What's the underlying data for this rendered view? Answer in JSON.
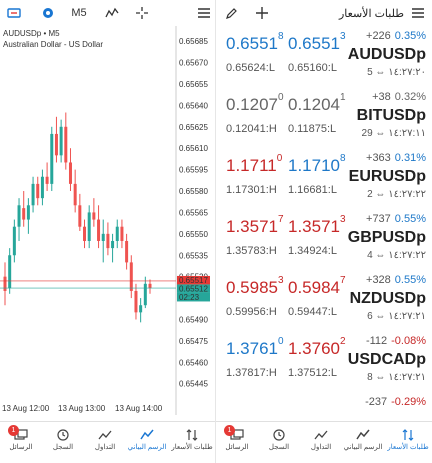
{
  "left_toolbar": {
    "timeframe": "M5"
  },
  "chart_data": {
    "type": "candlestick",
    "title": "AUDUSDp • M5",
    "subtitle": "Australian Dollar - US Dollar",
    "ylim": [
      0.65435,
      0.6569
    ],
    "y_ticks": [
      "0.65685",
      "0.65670",
      "0.65655",
      "0.65640",
      "0.65625",
      "0.65610",
      "0.65595",
      "0.65580",
      "0.65565",
      "0.65550",
      "0.65535",
      "0.65520",
      "0.65490",
      "0.65475",
      "0.65460",
      "0.65445"
    ],
    "x_ticks": [
      "13 Aug 12:00",
      "13 Aug 13:00",
      "13 Aug 14:00"
    ],
    "price_tags": [
      {
        "value": "0.65517",
        "color": "#e53935"
      },
      {
        "value": "0.65512",
        "color": "#26a69a"
      },
      {
        "value": "02:23",
        "color": "#26a69a"
      }
    ],
    "candles": [
      [
        0.6552,
        0.6553,
        0.655,
        0.6551
      ],
      [
        0.65512,
        0.6554,
        0.65508,
        0.65535
      ],
      [
        0.65535,
        0.6556,
        0.6553,
        0.65555
      ],
      [
        0.65555,
        0.65575,
        0.65545,
        0.6557
      ],
      [
        0.65568,
        0.6558,
        0.65555,
        0.6556
      ],
      [
        0.6556,
        0.65575,
        0.6555,
        0.6557
      ],
      [
        0.6557,
        0.6559,
        0.65565,
        0.65585
      ],
      [
        0.65585,
        0.6559,
        0.6557,
        0.65575
      ],
      [
        0.65575,
        0.65595,
        0.6557,
        0.6559
      ],
      [
        0.6559,
        0.656,
        0.6558,
        0.65585
      ],
      [
        0.65585,
        0.65625,
        0.6558,
        0.6562
      ],
      [
        0.6562,
        0.65632,
        0.656,
        0.65605
      ],
      [
        0.65605,
        0.6563,
        0.656,
        0.65625
      ],
      [
        0.65625,
        0.65635,
        0.65595,
        0.656
      ],
      [
        0.656,
        0.6561,
        0.6558,
        0.65585
      ],
      [
        0.65585,
        0.65595,
        0.65565,
        0.6557
      ],
      [
        0.6557,
        0.65578,
        0.65552,
        0.65555
      ],
      [
        0.65555,
        0.6556,
        0.6554,
        0.65545
      ],
      [
        0.65545,
        0.6557,
        0.6554,
        0.65565
      ],
      [
        0.65565,
        0.65575,
        0.65555,
        0.6556
      ],
      [
        0.6556,
        0.6557,
        0.6554,
        0.65545
      ],
      [
        0.65545,
        0.6556,
        0.6553,
        0.6555
      ],
      [
        0.6555,
        0.65558,
        0.65535,
        0.6554
      ],
      [
        0.6554,
        0.6555,
        0.6553,
        0.65545
      ],
      [
        0.65545,
        0.6556,
        0.6554,
        0.65555
      ],
      [
        0.65555,
        0.6556,
        0.6554,
        0.65545
      ],
      [
        0.65545,
        0.6555,
        0.65525,
        0.6553
      ],
      [
        0.6553,
        0.65535,
        0.65505,
        0.6551
      ],
      [
        0.6551,
        0.65515,
        0.6549,
        0.65495
      ],
      [
        0.65495,
        0.65505,
        0.65488,
        0.655
      ],
      [
        0.655,
        0.6552,
        0.65498,
        0.65515
      ],
      [
        0.65515,
        0.65518,
        0.65508,
        0.65512
      ]
    ]
  },
  "quotes": [
    {
      "bid_main": "0.6551",
      "bid_sup": "8",
      "ask_main": "0.6551",
      "ask_sup": "3",
      "low": "0.65624:L",
      "high": "0.65160:L",
      "change": "+226",
      "pct": "0.35%",
      "symbol": "AUDUSDp",
      "meta": "5 ⇔ ١٤:٢٧:٢٠",
      "price_color": "blue",
      "chg_color": "blue"
    },
    {
      "bid_main": "0.1207",
      "bid_sup": "0",
      "ask_main": "0.1204",
      "ask_sup": "1",
      "low": "0.12041:H",
      "high": "0.11875:L",
      "change": "+38",
      "pct": "0.32%",
      "symbol": "BITUSDp",
      "meta": "29 ⇔ ١٤:٢٧:١١",
      "price_color": "gray",
      "chg_color": "gray"
    },
    {
      "bid_main": "1.1711",
      "bid_sup": "0",
      "ask_main": "1.1710",
      "ask_sup": "8",
      "low": "1.17301:H",
      "high": "1.16681:L",
      "change": "+363",
      "pct": "0.31%",
      "symbol": "EURUSDp",
      "meta": "2 ⇔ ١٤:٢٧:٢٢",
      "price_color": "red",
      "chg_color": "blue",
      "ask_color": "blue"
    },
    {
      "bid_main": "1.3571",
      "bid_sup": "7",
      "ask_main": "1.3571",
      "ask_sup": "3",
      "low": "1.35783:H",
      "high": "1.34924:L",
      "change": "+737",
      "pct": "0.55%",
      "symbol": "GBPUSDp",
      "meta": "4 ⇔ ١٤:٢٧:٢٢",
      "price_color": "red",
      "chg_color": "blue"
    },
    {
      "bid_main": "0.5985",
      "bid_sup": "3",
      "ask_main": "0.5984",
      "ask_sup": "7",
      "low": "0.59956:H",
      "high": "0.59447:L",
      "change": "+328",
      "pct": "0.55%",
      "symbol": "NZDUSDp",
      "meta": "6 ⇔ ١٤:٢٧:٢١",
      "price_color": "red",
      "chg_color": "blue"
    },
    {
      "bid_main": "1.3761",
      "bid_sup": "0",
      "ask_main": "1.3760",
      "ask_sup": "2",
      "low": "1.37817:H",
      "high": "1.37512:L",
      "change": "-112",
      "pct": "-0.08%",
      "symbol": "USDCADp",
      "meta": "8 ⇔ ١٤:٢٧:٢١",
      "price_color": "blue",
      "chg_color": "red",
      "ask_color": "red"
    },
    {
      "change": "-237",
      "pct": "-0.29%",
      "chg_color": "red"
    }
  ],
  "right_header": {
    "title": "طلبات الأسعار"
  },
  "nav": {
    "badge": "1",
    "items": [
      "الرسائل",
      "السجل",
      "التداول",
      "الرسم البياني",
      "طلبات الأسعار"
    ]
  }
}
